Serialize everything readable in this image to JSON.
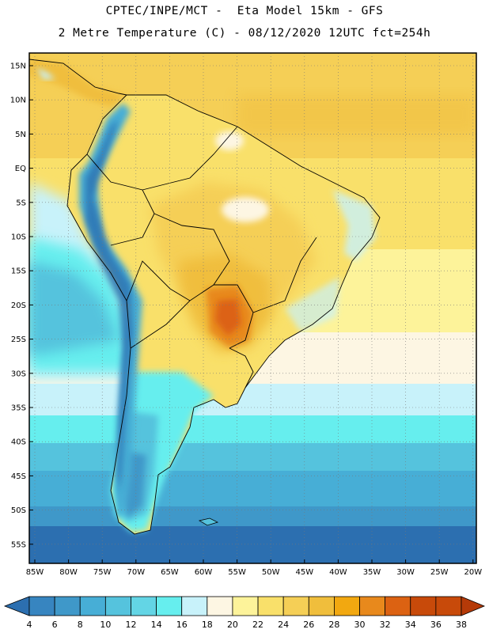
{
  "header": {
    "title_line1": "CPTEC/INPE/MCT -  Eta Model 15km - GFS",
    "title_line2": "2 Metre Temperature (C) - 08/12/2020 12UTC fct=254h"
  },
  "map": {
    "lat_labels": [
      "15N",
      "10N",
      "5N",
      "EQ",
      "5S",
      "10S",
      "15S",
      "20S",
      "25S",
      "30S",
      "35S",
      "40S",
      "45S",
      "50S",
      "55S"
    ],
    "lon_labels": [
      "85W",
      "80W",
      "75W",
      "70W",
      "65W",
      "60W",
      "55W",
      "50W",
      "45W",
      "40W",
      "35W",
      "30W",
      "25W",
      "20W"
    ]
  },
  "colorbar": {
    "labels": [
      "4",
      "6",
      "8",
      "10",
      "12",
      "14",
      "16",
      "18",
      "20",
      "22",
      "24",
      "26",
      "28",
      "30",
      "32",
      "34",
      "36",
      "38"
    ],
    "colors": [
      "#2c6fb0",
      "#3785c0",
      "#3f98c9",
      "#47aed6",
      "#55c3dd",
      "#63d5e5",
      "#66eeee",
      "#c8f2fa",
      "#fdf6e3",
      "#fdf39a",
      "#f9e06a",
      "#f5cf56",
      "#f0be3c",
      "#f2a810",
      "#e8891c",
      "#dc6212",
      "#c84a0a",
      "#b53a08"
    ]
  }
}
